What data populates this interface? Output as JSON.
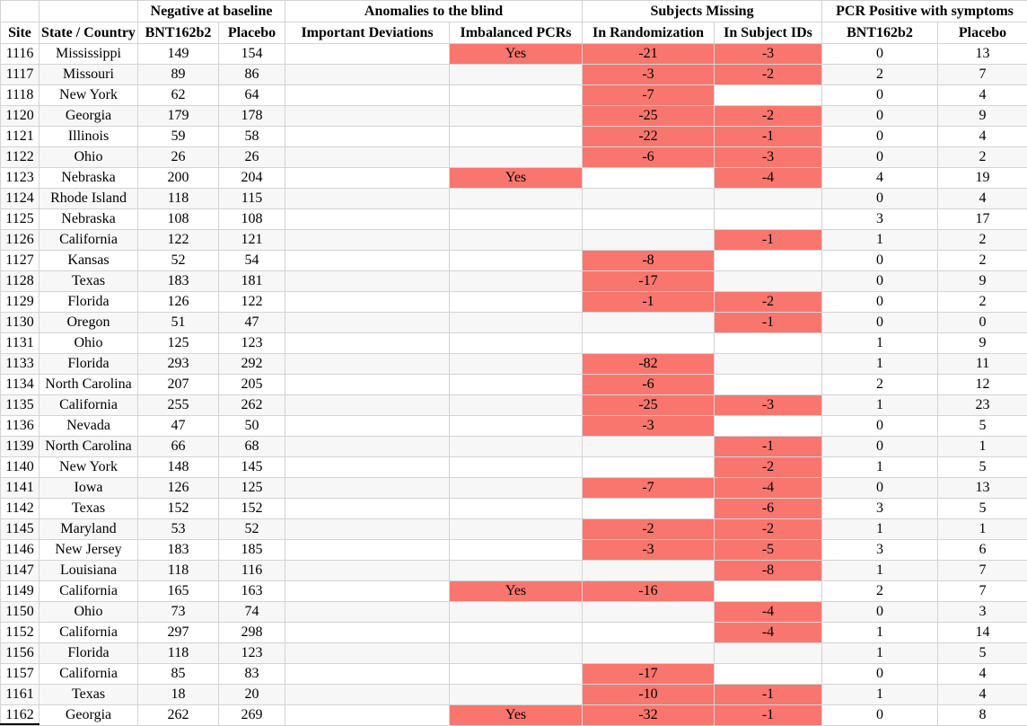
{
  "chart_data": {
    "type": "table",
    "title": "",
    "header_groups": [
      {
        "label": "",
        "span": 2
      },
      {
        "label": "Negative at baseline",
        "span": 2
      },
      {
        "label": "Anomalies to the blind",
        "span": 2
      },
      {
        "label": "Subjects Missing",
        "span": 2
      },
      {
        "label": "PCR Positive with symptoms",
        "span": 2
      }
    ],
    "columns": [
      "Site",
      "State / Country",
      "BNT162b2",
      "Placebo",
      "Important Deviations",
      "Imbalanced PCRs",
      "In Randomization",
      "In Subject IDs",
      "BNT162b2",
      "Placebo"
    ],
    "column_keys": [
      "site",
      "state_country",
      "neg_baseline_bnt162b2",
      "neg_baseline_placebo",
      "important_deviations",
      "imbalanced_pcrs",
      "missing_in_randomization",
      "missing_in_subject_ids",
      "pcr_positive_bnt162b2",
      "pcr_positive_placebo"
    ],
    "highlight_columns": [
      "important_deviations",
      "imbalanced_pcrs",
      "missing_in_randomization",
      "missing_in_subject_ids"
    ],
    "rows": [
      [
        "1116",
        "Mississippi",
        "149",
        "154",
        "",
        "Yes",
        "-21",
        "-3",
        "0",
        "13"
      ],
      [
        "1117",
        "Missouri",
        "89",
        "86",
        "",
        "",
        "-3",
        "-2",
        "2",
        "7"
      ],
      [
        "1118",
        "New York",
        "62",
        "64",
        "",
        "",
        "-7",
        "",
        "0",
        "4"
      ],
      [
        "1120",
        "Georgia",
        "179",
        "178",
        "",
        "",
        "-25",
        "-2",
        "0",
        "9"
      ],
      [
        "1121",
        "Illinois",
        "59",
        "58",
        "",
        "",
        "-22",
        "-1",
        "0",
        "4"
      ],
      [
        "1122",
        "Ohio",
        "26",
        "26",
        "",
        "",
        "-6",
        "-3",
        "0",
        "2"
      ],
      [
        "1123",
        "Nebraska",
        "200",
        "204",
        "",
        "Yes",
        "",
        "-4",
        "4",
        "19"
      ],
      [
        "1124",
        "Rhode Island",
        "118",
        "115",
        "",
        "",
        "",
        "",
        "0",
        "4"
      ],
      [
        "1125",
        "Nebraska",
        "108",
        "108",
        "",
        "",
        "",
        "",
        "3",
        "17"
      ],
      [
        "1126",
        "California",
        "122",
        "121",
        "",
        "",
        "",
        "-1",
        "1",
        "2"
      ],
      [
        "1127",
        "Kansas",
        "52",
        "54",
        "",
        "",
        "-8",
        "",
        "0",
        "2"
      ],
      [
        "1128",
        "Texas",
        "183",
        "181",
        "",
        "",
        "-17",
        "",
        "0",
        "9"
      ],
      [
        "1129",
        "Florida",
        "126",
        "122",
        "",
        "",
        "-1",
        "-2",
        "0",
        "2"
      ],
      [
        "1130",
        "Oregon",
        "51",
        "47",
        "",
        "",
        "",
        "-1",
        "0",
        "0"
      ],
      [
        "1131",
        "Ohio",
        "125",
        "123",
        "",
        "",
        "",
        "",
        "1",
        "9"
      ],
      [
        "1133",
        "Florida",
        "293",
        "292",
        "",
        "",
        "-82",
        "",
        "1",
        "11"
      ],
      [
        "1134",
        "North Carolina",
        "207",
        "205",
        "",
        "",
        "-6",
        "",
        "2",
        "12"
      ],
      [
        "1135",
        "California",
        "255",
        "262",
        "",
        "",
        "-25",
        "-3",
        "1",
        "23"
      ],
      [
        "1136",
        "Nevada",
        "47",
        "50",
        "",
        "",
        "-3",
        "",
        "0",
        "5"
      ],
      [
        "1139",
        "North Carolina",
        "66",
        "68",
        "",
        "",
        "",
        "-1",
        "0",
        "1"
      ],
      [
        "1140",
        "New York",
        "148",
        "145",
        "",
        "",
        "",
        "-2",
        "1",
        "5"
      ],
      [
        "1141",
        "Iowa",
        "126",
        "125",
        "",
        "",
        "-7",
        "-4",
        "0",
        "13"
      ],
      [
        "1142",
        "Texas",
        "152",
        "152",
        "",
        "",
        "",
        "-6",
        "3",
        "5"
      ],
      [
        "1145",
        "Maryland",
        "53",
        "52",
        "",
        "",
        "-2",
        "-2",
        "1",
        "1"
      ],
      [
        "1146",
        "New Jersey",
        "183",
        "185",
        "",
        "",
        "-3",
        "-5",
        "3",
        "6"
      ],
      [
        "1147",
        "Louisiana",
        "118",
        "116",
        "",
        "",
        "",
        "-8",
        "1",
        "7"
      ],
      [
        "1149",
        "California",
        "165",
        "163",
        "",
        "Yes",
        "-16",
        "",
        "2",
        "7"
      ],
      [
        "1150",
        "Ohio",
        "73",
        "74",
        "",
        "",
        "",
        "-4",
        "0",
        "3"
      ],
      [
        "1152",
        "California",
        "297",
        "298",
        "",
        "",
        "",
        "-4",
        "1",
        "14"
      ],
      [
        "1156",
        "Florida",
        "118",
        "123",
        "",
        "",
        "",
        "",
        "1",
        "5"
      ],
      [
        "1157",
        "California",
        "85",
        "83",
        "",
        "",
        "-17",
        "",
        "0",
        "4"
      ],
      [
        "1161",
        "Texas",
        "18",
        "20",
        "",
        "",
        "-10",
        "-1",
        "1",
        "4"
      ],
      [
        "1162",
        "Georgia",
        "262",
        "269",
        "",
        "Yes",
        "-32",
        "-1",
        "0",
        "8"
      ]
    ],
    "colors": {
      "highlight": "#f8766d",
      "stripe": "#f7f7f7",
      "border": "#d3d3d3",
      "text": "#000000"
    },
    "layout": {
      "grid": "on",
      "zebra_striping": "on",
      "highlight_rule": "non-empty anomaly/missing cells shaded salmon"
    }
  }
}
